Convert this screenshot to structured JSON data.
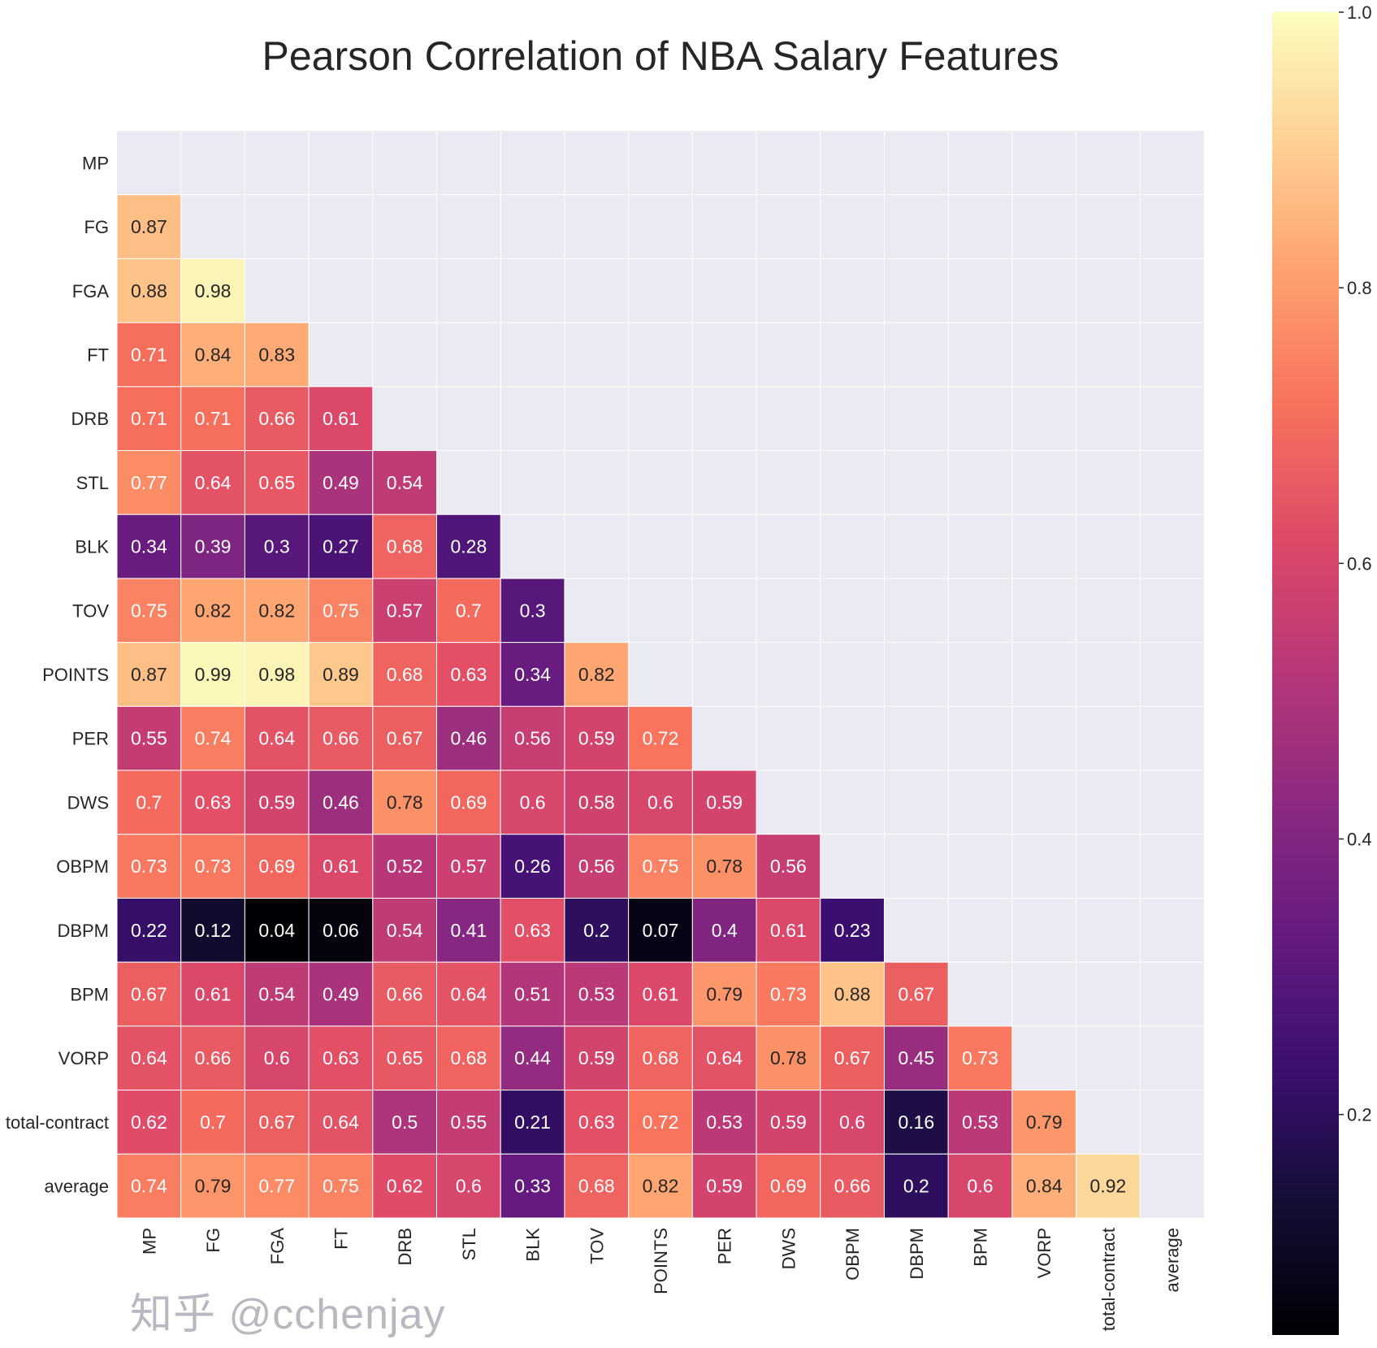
{
  "watermark": "知乎 @cchenjay",
  "chart_data": {
    "type": "heatmap",
    "title": "Pearson Correlation of NBA Salary Features",
    "colormap": "magma",
    "vmin": 0.04,
    "vmax": 1.0,
    "mask": "upper triangle including diagonal",
    "grid": true,
    "colorbar": {
      "placement": "right",
      "ticks": [
        "0.2",
        "0.4",
        "0.6",
        "0.8",
        "1.0"
      ]
    },
    "labels": [
      "MP",
      "FG",
      "FGA",
      "FT",
      "DRB",
      "STL",
      "BLK",
      "TOV",
      "POINTS",
      "PER",
      "DWS",
      "OBPM",
      "DBPM",
      "BPM",
      "VORP",
      "total-contract",
      "average"
    ],
    "lower_triangle": [
      [],
      [
        0.87
      ],
      [
        0.88,
        0.98
      ],
      [
        0.71,
        0.84,
        0.83
      ],
      [
        0.71,
        0.71,
        0.66,
        0.61
      ],
      [
        0.77,
        0.64,
        0.65,
        0.49,
        0.54
      ],
      [
        0.34,
        0.39,
        0.3,
        0.27,
        0.68,
        0.28
      ],
      [
        0.75,
        0.82,
        0.82,
        0.75,
        0.57,
        0.7,
        0.3
      ],
      [
        0.87,
        0.99,
        0.98,
        0.89,
        0.68,
        0.63,
        0.34,
        0.82
      ],
      [
        0.55,
        0.74,
        0.64,
        0.66,
        0.67,
        0.46,
        0.56,
        0.59,
        0.72
      ],
      [
        0.7,
        0.63,
        0.59,
        0.46,
        0.78,
        0.69,
        0.6,
        0.58,
        0.6,
        0.59
      ],
      [
        0.73,
        0.73,
        0.69,
        0.61,
        0.52,
        0.57,
        0.26,
        0.56,
        0.75,
        0.78,
        0.56
      ],
      [
        0.22,
        0.12,
        0.04,
        0.06,
        0.54,
        0.41,
        0.63,
        0.2,
        0.07,
        0.4,
        0.61,
        0.23
      ],
      [
        0.67,
        0.61,
        0.54,
        0.49,
        0.66,
        0.64,
        0.51,
        0.53,
        0.61,
        0.79,
        0.73,
        0.88,
        0.67
      ],
      [
        0.64,
        0.66,
        0.6,
        0.63,
        0.65,
        0.68,
        0.44,
        0.59,
        0.68,
        0.64,
        0.78,
        0.67,
        0.45,
        0.73
      ],
      [
        0.62,
        0.7,
        0.67,
        0.64,
        0.5,
        0.55,
        0.21,
        0.63,
        0.72,
        0.53,
        0.59,
        0.6,
        0.16,
        0.53,
        0.79
      ],
      [
        0.74,
        0.79,
        0.77,
        0.75,
        0.62,
        0.6,
        0.33,
        0.68,
        0.82,
        0.59,
        0.69,
        0.66,
        0.2,
        0.6,
        0.84,
        0.92
      ]
    ]
  }
}
